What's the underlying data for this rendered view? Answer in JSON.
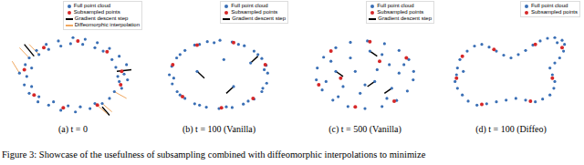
{
  "caption": "Figure 3: Showcase of the usefulness of subsampling combined with diffeomorphic interpolations to minimize",
  "chart_data": [
    {
      "type": "scatter",
      "title": "(a) t = 0",
      "xlim": [
        -1.35,
        1.35
      ],
      "ylim": [
        -1.35,
        1.35
      ],
      "tick_labels": false,
      "series": [
        {
          "name": "Full point cloud",
          "color": "#3a6fb5",
          "points": [
            [
              1.05,
              0.02
            ],
            [
              0.92,
              -0.05
            ],
            [
              1.1,
              0.3
            ],
            [
              0.88,
              0.22
            ],
            [
              0.95,
              0.55
            ],
            [
              0.8,
              0.45
            ],
            [
              0.75,
              0.78
            ],
            [
              0.62,
              0.7
            ],
            [
              0.5,
              0.95
            ],
            [
              0.45,
              0.8
            ],
            [
              0.25,
              1.05
            ],
            [
              0.2,
              0.9
            ],
            [
              0,
              1.1
            ],
            [
              -0.05,
              0.92
            ],
            [
              -0.3,
              1.0
            ],
            [
              -0.25,
              0.85
            ],
            [
              -0.55,
              0.9
            ],
            [
              -0.5,
              0.75
            ],
            [
              -0.75,
              0.72
            ],
            [
              -0.7,
              0.6
            ],
            [
              -0.9,
              0.5
            ],
            [
              -0.98,
              0.3
            ],
            [
              -0.85,
              0.2
            ],
            [
              -1.1,
              0.05
            ],
            [
              -0.95,
              -0.05
            ],
            [
              -1.0,
              -0.3
            ],
            [
              -0.85,
              -0.35
            ],
            [
              -0.9,
              -0.55
            ],
            [
              -0.7,
              -0.65
            ],
            [
              -0.72,
              -0.8
            ],
            [
              -0.5,
              -0.9
            ],
            [
              -0.4,
              -0.8
            ],
            [
              -0.25,
              -1.05
            ],
            [
              -0.1,
              -0.92
            ],
            [
              0.05,
              -1.1
            ],
            [
              0.15,
              -0.95
            ],
            [
              0.35,
              -1.0
            ],
            [
              0.45,
              -0.85
            ],
            [
              0.6,
              -0.85
            ],
            [
              0.75,
              -0.7
            ],
            [
              0.85,
              -0.5
            ],
            [
              1.0,
              -0.4
            ],
            [
              0.95,
              -0.2
            ],
            [
              1.12,
              -0.15
            ]
          ]
        },
        {
          "name": "Subsampled points",
          "color": "#d62728",
          "points": [
            [
              1.0,
              0.1
            ],
            [
              0.7,
              0.68
            ],
            [
              0.1,
              1.0
            ],
            [
              -0.6,
              0.8
            ],
            [
              -1.0,
              0.15
            ],
            [
              -0.8,
              -0.6
            ],
            [
              -0.2,
              -0.98
            ],
            [
              0.5,
              -0.9
            ],
            [
              0.98,
              -0.3
            ]
          ]
        }
      ],
      "segments": [
        {
          "name": "Gradient descent step",
          "color": "#000000",
          "lines": [
            [
              -0.8,
              0.55,
              -1.0,
              0.9
            ],
            [
              0.6,
              -0.95,
              0.75,
              -1.2
            ],
            [
              0.9,
              0.1,
              1.2,
              0.15
            ]
          ]
        },
        {
          "name": "Diffeomorphic interpolation",
          "color": "#f0a860",
          "lines": [
            [
              -1.1,
              0.05,
              -1.25,
              0.4
            ],
            [
              -0.9,
              0.5,
              -1.1,
              0.8
            ],
            [
              0.45,
              -0.85,
              0.7,
              -1.15
            ],
            [
              0.6,
              -0.85,
              0.8,
              -1.1
            ],
            [
              0.85,
              -0.5,
              1.1,
              -0.7
            ],
            [
              -0.7,
              0.6,
              -0.9,
              0.9
            ]
          ]
        }
      ]
    },
    {
      "type": "scatter",
      "title": "(b) t = 100 (Vanilla)",
      "xlim": [
        -1.35,
        1.35
      ],
      "ylim": [
        -1.35,
        1.35
      ],
      "tick_labels": false,
      "series": [
        {
          "name": "Full point cloud",
          "color": "#3a6fb5",
          "points": [
            [
              1.0,
              0.05
            ],
            [
              0.97,
              0.28
            ],
            [
              0.88,
              0.48
            ],
            [
              0.72,
              0.7
            ],
            [
              0.52,
              0.86
            ],
            [
              0.27,
              0.97
            ],
            [
              0.02,
              1.02
            ],
            [
              -0.24,
              0.98
            ],
            [
              -0.5,
              0.88
            ],
            [
              -0.7,
              0.72
            ],
            [
              -0.87,
              0.5
            ],
            [
              -0.97,
              0.25
            ],
            [
              -1.02,
              0.0
            ],
            [
              -0.96,
              -0.27
            ],
            [
              -0.86,
              -0.5
            ],
            [
              -0.7,
              -0.7
            ],
            [
              -0.5,
              -0.86
            ],
            [
              -0.26,
              -0.96
            ],
            [
              0.0,
              -1.0
            ],
            [
              0.27,
              -0.97
            ],
            [
              0.5,
              -0.87
            ],
            [
              0.72,
              -0.72
            ],
            [
              0.88,
              -0.5
            ],
            [
              0.98,
              -0.25
            ],
            [
              0.93,
              0.15
            ],
            [
              0.8,
              0.6
            ],
            [
              0.4,
              0.9
            ],
            [
              -0.1,
              0.95
            ],
            [
              -0.4,
              0.9
            ],
            [
              -0.8,
              0.6
            ],
            [
              -0.93,
              -0.1
            ],
            [
              -0.8,
              -0.6
            ],
            [
              -0.4,
              -0.9
            ],
            [
              0.15,
              -0.95
            ],
            [
              0.6,
              -0.78
            ],
            [
              0.9,
              -0.4
            ],
            [
              -0.45,
              0.1
            ],
            [
              0.3,
              -0.35
            ],
            [
              0.65,
              0.35
            ],
            [
              0.1,
              0.45
            ]
          ]
        },
        {
          "name": "Subsampled points",
          "color": "#d62728",
          "points": [
            [
              0.95,
              0.3
            ],
            [
              0.3,
              0.95
            ],
            [
              -0.45,
              0.88
            ],
            [
              -0.95,
              0.3
            ],
            [
              -0.75,
              -0.65
            ],
            [
              0.05,
              -0.98
            ],
            [
              0.7,
              -0.7
            ]
          ]
        }
      ],
      "segments": [
        {
          "name": "Gradient descent step",
          "color": "#000000",
          "lines": [
            [
              -0.45,
              0.1,
              -0.3,
              -0.1
            ],
            [
              0.3,
              -0.35,
              0.15,
              -0.55
            ],
            [
              0.65,
              0.35,
              0.8,
              0.55
            ]
          ]
        }
      ]
    },
    {
      "type": "scatter",
      "title": "(c) t = 500 (Vanilla)",
      "xlim": [
        -1.35,
        1.35
      ],
      "ylim": [
        -1.35,
        1.35
      ],
      "tick_labels": false,
      "series": [
        {
          "name": "Full point cloud",
          "color": "#3a6fb5",
          "points": [
            [
              1.0,
              0.1
            ],
            [
              0.9,
              0.45
            ],
            [
              0.7,
              0.72
            ],
            [
              0.4,
              0.92
            ],
            [
              0.05,
              1.0
            ],
            [
              -0.3,
              0.96
            ],
            [
              -0.6,
              0.8
            ],
            [
              -0.85,
              0.52
            ],
            [
              -0.98,
              0.2
            ],
            [
              -1.0,
              -0.15
            ],
            [
              -0.88,
              -0.45
            ],
            [
              -0.66,
              -0.75
            ],
            [
              -0.35,
              -0.94
            ],
            [
              0.0,
              -1.0
            ],
            [
              0.35,
              -0.94
            ],
            [
              0.65,
              -0.76
            ],
            [
              0.87,
              -0.48
            ],
            [
              0.99,
              -0.15
            ],
            [
              0.5,
              0.3
            ],
            [
              -0.3,
              0.5
            ],
            [
              -0.6,
              0.1
            ],
            [
              0.2,
              -0.2
            ],
            [
              -0.1,
              -0.55
            ],
            [
              0.55,
              -0.4
            ],
            [
              0.7,
              0.05
            ],
            [
              -0.45,
              -0.35
            ],
            [
              0.1,
              0.7
            ],
            [
              -0.7,
              0.4
            ],
            [
              0.35,
              0.6
            ],
            [
              -0.2,
              0.1
            ],
            [
              0.0,
              -0.3
            ],
            [
              0.45,
              -0.7
            ],
            [
              -0.55,
              -0.65
            ],
            [
              0.8,
              0.3
            ],
            [
              -0.8,
              -0.2
            ],
            [
              0.25,
              0.15
            ]
          ]
        },
        {
          "name": "Subsampled points",
          "color": "#d62728",
          "points": [
            [
              0.85,
              0.5
            ],
            [
              0.1,
              0.98
            ],
            [
              -0.7,
              0.7
            ],
            [
              -0.95,
              -0.3
            ],
            [
              -0.2,
              -0.95
            ],
            [
              0.6,
              -0.78
            ],
            [
              0.3,
              0.4
            ],
            [
              -0.5,
              -0.1
            ]
          ]
        }
      ],
      "segments": [
        {
          "name": "Gradient descent step",
          "color": "#000000",
          "lines": [
            [
              0.55,
              -0.4,
              0.4,
              -0.55
            ],
            [
              -0.6,
              0.1,
              -0.45,
              -0.05
            ],
            [
              0.1,
              0.7,
              0.25,
              0.55
            ],
            [
              0.2,
              -0.2,
              0.05,
              -0.35
            ]
          ]
        }
      ]
    },
    {
      "type": "scatter",
      "title": "(d) t = 100 (Diffeo)",
      "xlim": [
        -1.35,
        1.35
      ],
      "ylim": [
        -1.35,
        1.35
      ],
      "tick_labels": false,
      "series": [
        {
          "name": "Full point cloud",
          "color": "#3a6fb5",
          "points": [
            [
              -1.1,
              0.2
            ],
            [
              -1.05,
              0.45
            ],
            [
              -0.9,
              0.7
            ],
            [
              -0.75,
              0.85
            ],
            [
              -0.6,
              0.9
            ],
            [
              -0.45,
              0.82
            ],
            [
              -0.3,
              0.7
            ],
            [
              -0.15,
              0.58
            ],
            [
              0.0,
              0.5
            ],
            [
              0.15,
              0.6
            ],
            [
              0.3,
              0.72
            ],
            [
              0.45,
              0.88
            ],
            [
              0.6,
              1.0
            ],
            [
              0.75,
              1.08
            ],
            [
              0.9,
              1.1
            ],
            [
              1.05,
              1.02
            ],
            [
              1.1,
              0.9
            ],
            [
              1.08,
              0.7
            ],
            [
              1.0,
              0.5
            ],
            [
              0.9,
              0.35
            ],
            [
              0.8,
              0.2
            ],
            [
              0.85,
              0.0
            ],
            [
              0.9,
              -0.2
            ],
            [
              0.88,
              -0.4
            ],
            [
              0.8,
              -0.6
            ],
            [
              0.65,
              -0.72
            ],
            [
              0.5,
              -0.8
            ],
            [
              0.3,
              -0.75
            ],
            [
              0.1,
              -0.7
            ],
            [
              -0.1,
              -0.75
            ],
            [
              -0.3,
              -0.8
            ],
            [
              -0.5,
              -0.86
            ],
            [
              -0.7,
              -0.9
            ],
            [
              -0.88,
              -0.78
            ],
            [
              -1.0,
              -0.6
            ],
            [
              -1.1,
              -0.4
            ],
            [
              -1.15,
              -0.2
            ],
            [
              -1.12,
              0.0
            ],
            [
              -0.98,
              0.1
            ],
            [
              0.95,
              0.95
            ]
          ]
        },
        {
          "name": "Subsampled points",
          "color": "#d62728",
          "points": [
            [
              -1.0,
              0.55
            ],
            [
              -0.35,
              0.75
            ],
            [
              0.5,
              0.9
            ],
            [
              1.05,
              0.8
            ],
            [
              0.85,
              -0.1
            ],
            [
              0.4,
              -0.78
            ],
            [
              -0.6,
              -0.88
            ],
            [
              -1.12,
              -0.1
            ]
          ]
        }
      ],
      "segments": []
    }
  ]
}
